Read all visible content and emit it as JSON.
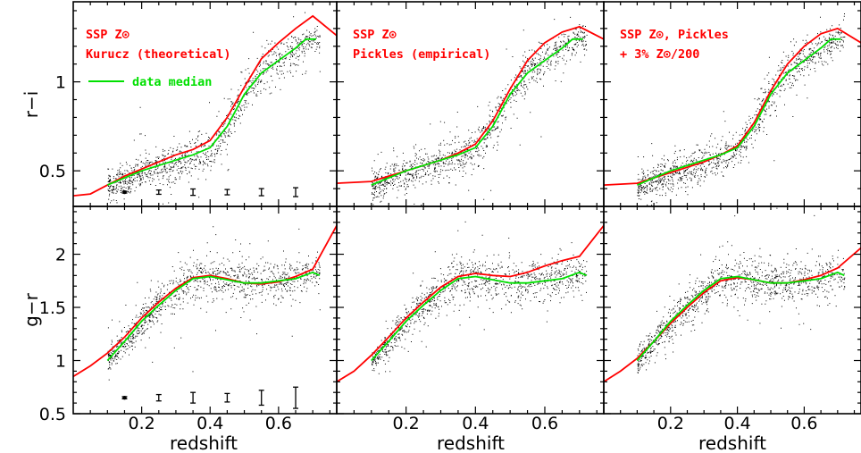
{
  "colors": {
    "model": "#ff0000",
    "median": "#00e000",
    "points": "#000000",
    "axes": "#000000"
  },
  "chart_data": {
    "type": "scatter",
    "layout": "2 rows x 3 columns, shared x-axis per column, shared y-axis per row",
    "xlabel": "redshift",
    "xlim": [
      0.0,
      0.77
    ],
    "xticks": [
      0.2,
      0.4,
      0.6
    ],
    "xtick_labels": [
      "0.2",
      "0.4",
      "0.6"
    ],
    "rows": [
      {
        "ylabel": "r−i",
        "ylim": [
          0.3,
          1.45
        ],
        "yticks": [
          0.5,
          1.0
        ],
        "ytick_labels": [
          "0.5",
          "1"
        ],
        "median": {
          "x": [
            0.1,
            0.15,
            0.2,
            0.25,
            0.3,
            0.35,
            0.4,
            0.45,
            0.5,
            0.55,
            0.6,
            0.65,
            0.68,
            0.71
          ],
          "y": [
            0.42,
            0.46,
            0.5,
            0.53,
            0.56,
            0.59,
            0.63,
            0.75,
            0.93,
            1.05,
            1.12,
            1.19,
            1.24,
            1.24
          ]
        },
        "scatter_trend": {
          "x": [
            0.1,
            0.2,
            0.3,
            0.35,
            0.4,
            0.45,
            0.5,
            0.55,
            0.6,
            0.65,
            0.7
          ],
          "y": [
            0.41,
            0.49,
            0.55,
            0.58,
            0.62,
            0.75,
            0.94,
            1.06,
            1.13,
            1.19,
            1.25
          ],
          "spread": [
            0.04,
            0.05,
            0.05,
            0.05,
            0.05,
            0.06,
            0.06,
            0.06,
            0.05,
            0.05,
            0.04
          ]
        },
        "error_bars": {
          "x": [
            0.15,
            0.25,
            0.35,
            0.45,
            0.55,
            0.65
          ],
          "y": 0.38,
          "half_width": [
            0.005,
            0.012,
            0.018,
            0.015,
            0.02,
            0.025
          ]
        }
      },
      {
        "ylabel": "g−r",
        "ylim": [
          0.5,
          2.45
        ],
        "yticks": [
          0.5,
          1.0,
          1.5,
          2.0
        ],
        "ytick_labels": [
          "0.5",
          "1",
          "1.5",
          "2"
        ],
        "median": {
          "x": [
            0.1,
            0.15,
            0.2,
            0.25,
            0.3,
            0.35,
            0.4,
            0.45,
            0.5,
            0.55,
            0.6,
            0.65,
            0.7,
            0.72
          ],
          "y": [
            1.0,
            1.18,
            1.37,
            1.52,
            1.66,
            1.77,
            1.79,
            1.76,
            1.73,
            1.73,
            1.75,
            1.77,
            1.83,
            1.8
          ]
        },
        "scatter_trend": {
          "x": [
            0.1,
            0.15,
            0.2,
            0.25,
            0.3,
            0.35,
            0.4,
            0.45,
            0.5,
            0.55,
            0.6,
            0.65,
            0.7
          ],
          "y": [
            1.0,
            1.18,
            1.37,
            1.52,
            1.66,
            1.77,
            1.79,
            1.76,
            1.74,
            1.74,
            1.76,
            1.78,
            1.82
          ],
          "spread": [
            0.05,
            0.07,
            0.08,
            0.09,
            0.1,
            0.11,
            0.11,
            0.1,
            0.1,
            0.1,
            0.1,
            0.1,
            0.08
          ]
        },
        "error_bars": {
          "x": [
            0.15,
            0.25,
            0.35,
            0.45,
            0.55,
            0.65
          ],
          "y": 0.65,
          "half_width": [
            0.01,
            0.03,
            0.05,
            0.04,
            0.07,
            0.1
          ]
        }
      }
    ],
    "panels": [
      {
        "column": 0,
        "legend": [
          "SSP Z⊙",
          "Kurucz (theoretical)"
        ],
        "series": [
          {
            "name": "SSP Z⊙ Kurucz (theoretical)",
            "row": 0,
            "x": [
              0.0,
              0.05,
              0.1,
              0.15,
              0.2,
              0.25,
              0.3,
              0.35,
              0.4,
              0.45,
              0.5,
              0.55,
              0.6,
              0.65,
              0.7,
              0.77
            ],
            "y": [
              0.36,
              0.37,
              0.42,
              0.47,
              0.51,
              0.55,
              0.59,
              0.62,
              0.67,
              0.8,
              0.97,
              1.13,
              1.22,
              1.3,
              1.37,
              1.26
            ]
          },
          {
            "name": "SSP Z⊙ Kurucz (theoretical)",
            "row": 1,
            "x": [
              0.0,
              0.05,
              0.1,
              0.15,
              0.2,
              0.25,
              0.3,
              0.35,
              0.4,
              0.45,
              0.5,
              0.55,
              0.6,
              0.65,
              0.7,
              0.77
            ],
            "y": [
              0.85,
              0.95,
              1.07,
              1.22,
              1.4,
              1.55,
              1.68,
              1.78,
              1.8,
              1.77,
              1.73,
              1.72,
              1.74,
              1.79,
              1.86,
              2.27
            ]
          }
        ]
      },
      {
        "column": 1,
        "legend": [
          "SSP Z⊙",
          "Pickles (empirical)"
        ],
        "series": [
          {
            "name": "SSP Z⊙ Pickles (empirical)",
            "row": 0,
            "x": [
              0.0,
              0.05,
              0.1,
              0.15,
              0.2,
              0.25,
              0.3,
              0.35,
              0.4,
              0.45,
              0.5,
              0.55,
              0.6,
              0.65,
              0.7,
              0.77
            ],
            "y": [
              0.43,
              0.435,
              0.44,
              0.47,
              0.5,
              0.53,
              0.56,
              0.6,
              0.65,
              0.78,
              0.96,
              1.12,
              1.22,
              1.28,
              1.31,
              1.24
            ]
          },
          {
            "name": "SSP Z⊙ Pickles (empirical)",
            "row": 1,
            "x": [
              0.0,
              0.05,
              0.1,
              0.15,
              0.2,
              0.25,
              0.3,
              0.35,
              0.4,
              0.45,
              0.5,
              0.55,
              0.6,
              0.65,
              0.7,
              0.77
            ],
            "y": [
              0.8,
              0.9,
              1.05,
              1.22,
              1.4,
              1.55,
              1.69,
              1.79,
              1.82,
              1.8,
              1.79,
              1.83,
              1.89,
              1.94,
              1.98,
              2.27
            ]
          }
        ]
      },
      {
        "column": 2,
        "legend": [
          "SSP Z⊙, Pickles",
          "+ 3% Z⊙/200"
        ],
        "series": [
          {
            "name": "SSP Z⊙, Pickles + 3% Z⊙/200",
            "row": 0,
            "x": [
              0.0,
              0.05,
              0.1,
              0.15,
              0.2,
              0.25,
              0.3,
              0.35,
              0.4,
              0.45,
              0.5,
              0.55,
              0.6,
              0.65,
              0.7,
              0.77
            ],
            "y": [
              0.42,
              0.425,
              0.43,
              0.46,
              0.49,
              0.52,
              0.55,
              0.59,
              0.64,
              0.77,
              0.95,
              1.1,
              1.2,
              1.27,
              1.3,
              1.22
            ]
          },
          {
            "name": "SSP Z⊙, Pickles + 3% Z⊙/200",
            "row": 1,
            "x": [
              0.0,
              0.05,
              0.1,
              0.15,
              0.2,
              0.25,
              0.3,
              0.35,
              0.4,
              0.45,
              0.5,
              0.55,
              0.6,
              0.65,
              0.7,
              0.77
            ],
            "y": [
              0.8,
              0.9,
              1.02,
              1.18,
              1.35,
              1.5,
              1.64,
              1.75,
              1.78,
              1.76,
              1.73,
              1.73,
              1.76,
              1.8,
              1.87,
              2.06
            ]
          }
        ]
      }
    ],
    "legend_extra": {
      "label": "data median",
      "panel_column": 0
    }
  }
}
